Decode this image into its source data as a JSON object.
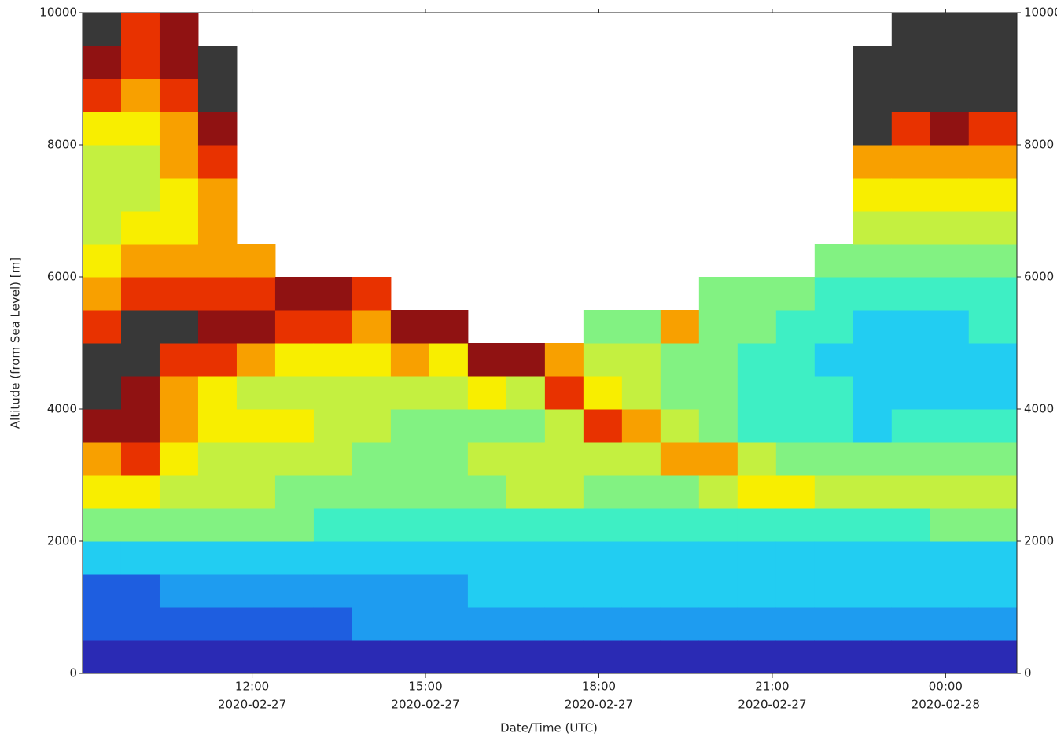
{
  "chart_data": {
    "type": "heatmap",
    "x_label": "Date/Time (UTC)",
    "y_label": "Altitude (from Sea Level) [m]",
    "xlim": [
      "2020-02-27 09:04",
      "2020-02-28 01:14"
    ],
    "xticks": [
      {
        "value": "2020-02-27 12:00",
        "label": [
          "12:00",
          "2020-02-27"
        ]
      },
      {
        "value": "2020-02-27 15:00",
        "label": [
          "15:00",
          "2020-02-27"
        ]
      },
      {
        "value": "2020-02-27 18:00",
        "label": [
          "18:00",
          "2020-02-27"
        ]
      },
      {
        "value": "2020-02-27 21:00",
        "label": [
          "21:00",
          "2020-02-27"
        ]
      },
      {
        "value": "2020-02-28 00:00",
        "label": [
          "00:00",
          "2020-02-28"
        ]
      }
    ],
    "ylim": [
      0,
      10000
    ],
    "yticks": [
      0,
      2000,
      4000,
      6000,
      8000,
      10000
    ],
    "x": [
      "2020-02-27 09:04",
      "2020-02-27 09:44",
      "2020-02-27 10:24",
      "2020-02-27 11:04",
      "2020-02-27 11:44",
      "2020-02-27 12:24",
      "2020-02-27 13:04",
      "2020-02-27 13:44",
      "2020-02-27 14:24",
      "2020-02-27 15:04",
      "2020-02-27 15:44",
      "2020-02-27 16:24",
      "2020-02-27 17:04",
      "2020-02-27 17:44",
      "2020-02-27 18:24",
      "2020-02-27 19:04",
      "2020-02-27 19:44",
      "2020-02-27 20:24",
      "2020-02-27 21:04",
      "2020-02-27 21:44",
      "2020-02-27 22:24",
      "2020-02-27 23:04",
      "2020-02-27 23:44",
      "2020-02-28 00:24"
    ],
    "y_bins": [
      0,
      500,
      1000,
      1500,
      2000,
      2500,
      3000,
      3500,
      4000,
      4500,
      5000,
      5500,
      6000,
      6500,
      7000,
      7500,
      8000,
      8500,
      9000,
      9500,
      10000
    ],
    "colormap": [
      "#2a2ab4",
      "#1e5ee0",
      "#1e9cf0",
      "#22cdf2",
      "#3eefc4",
      "#82f282",
      "#c4f040",
      "#f8ee00",
      "#f8a000",
      "#e83200",
      "#901212",
      "#383838"
    ],
    "z": [
      [
        0,
        1,
        1,
        3,
        5,
        7,
        8,
        10,
        11,
        11,
        9,
        8,
        7,
        6,
        6,
        6,
        7,
        9,
        10,
        11
      ],
      [
        0,
        1,
        1,
        3,
        5,
        7,
        9,
        10,
        10,
        11,
        11,
        9,
        8,
        7,
        6,
        6,
        7,
        8,
        9,
        9
      ],
      [
        0,
        1,
        2,
        3,
        5,
        6,
        7,
        8,
        8,
        9,
        11,
        9,
        8,
        7,
        7,
        8,
        8,
        9,
        10,
        10
      ],
      [
        0,
        1,
        2,
        3,
        5,
        6,
        6,
        7,
        7,
        9,
        10,
        9,
        8,
        8,
        8,
        9,
        10,
        11,
        11,
        null
      ],
      [
        0,
        1,
        2,
        3,
        5,
        6,
        6,
        7,
        6,
        8,
        10,
        9,
        8,
        null,
        null,
        null,
        null,
        null,
        null,
        null
      ],
      [
        0,
        1,
        2,
        3,
        5,
        5,
        6,
        7,
        6,
        7,
        9,
        10,
        null,
        null,
        null,
        null,
        null,
        null,
        null,
        null
      ],
      [
        0,
        1,
        2,
        3,
        4,
        5,
        6,
        6,
        6,
        7,
        9,
        10,
        null,
        null,
        null,
        null,
        null,
        null,
        null,
        null
      ],
      [
        0,
        2,
        2,
        3,
        4,
        5,
        5,
        6,
        6,
        7,
        8,
        9,
        null,
        null,
        null,
        null,
        null,
        null,
        null,
        null
      ],
      [
        0,
        2,
        2,
        3,
        4,
        5,
        5,
        5,
        6,
        8,
        10,
        null,
        null,
        null,
        null,
        null,
        null,
        null,
        null,
        null
      ],
      [
        0,
        2,
        2,
        3,
        4,
        5,
        5,
        5,
        6,
        7,
        10,
        null,
        null,
        null,
        null,
        null,
        null,
        null,
        null,
        null
      ],
      [
        0,
        2,
        3,
        3,
        4,
        5,
        6,
        5,
        7,
        10,
        null,
        null,
        null,
        null,
        null,
        null,
        null,
        null,
        null,
        null
      ],
      [
        0,
        2,
        3,
        3,
        4,
        6,
        6,
        5,
        6,
        10,
        null,
        null,
        null,
        null,
        null,
        null,
        null,
        null,
        null,
        null
      ],
      [
        0,
        2,
        3,
        3,
        4,
        6,
        6,
        6,
        9,
        8,
        null,
        null,
        null,
        null,
        null,
        null,
        null,
        null,
        null,
        null
      ],
      [
        0,
        2,
        3,
        3,
        4,
        5,
        6,
        9,
        7,
        6,
        5,
        null,
        null,
        null,
        null,
        null,
        null,
        null,
        null,
        null
      ],
      [
        0,
        2,
        3,
        3,
        4,
        5,
        6,
        8,
        6,
        6,
        5,
        null,
        null,
        null,
        null,
        null,
        null,
        null,
        null,
        null
      ],
      [
        0,
        2,
        3,
        3,
        4,
        5,
        8,
        6,
        5,
        5,
        8,
        null,
        null,
        null,
        null,
        null,
        null,
        null,
        null,
        null
      ],
      [
        0,
        2,
        3,
        3,
        4,
        6,
        8,
        5,
        5,
        5,
        5,
        5,
        null,
        null,
        null,
        null,
        null,
        null,
        null,
        null
      ],
      [
        0,
        2,
        3,
        3,
        4,
        7,
        6,
        4,
        4,
        4,
        5,
        5,
        null,
        null,
        null,
        null,
        null,
        null,
        null,
        null
      ],
      [
        0,
        2,
        3,
        3,
        4,
        7,
        5,
        4,
        4,
        4,
        4,
        5,
        null,
        null,
        null,
        null,
        null,
        null,
        null,
        null
      ],
      [
        0,
        2,
        3,
        3,
        4,
        6,
        5,
        4,
        4,
        3,
        4,
        4,
        5,
        null,
        null,
        null,
        null,
        null,
        null,
        null
      ],
      [
        0,
        2,
        3,
        3,
        4,
        6,
        5,
        3,
        3,
        3,
        3,
        4,
        5,
        6,
        7,
        8,
        11,
        11,
        11,
        null
      ],
      [
        0,
        2,
        3,
        3,
        4,
        6,
        5,
        4,
        3,
        3,
        3,
        4,
        5,
        6,
        7,
        8,
        9,
        11,
        11,
        11
      ],
      [
        0,
        2,
        3,
        3,
        5,
        6,
        5,
        4,
        3,
        3,
        3,
        4,
        5,
        6,
        7,
        8,
        10,
        11,
        11,
        11
      ],
      [
        0,
        2,
        3,
        3,
        5,
        6,
        5,
        4,
        3,
        3,
        4,
        4,
        5,
        6,
        7,
        8,
        9,
        11,
        11,
        11
      ]
    ]
  }
}
